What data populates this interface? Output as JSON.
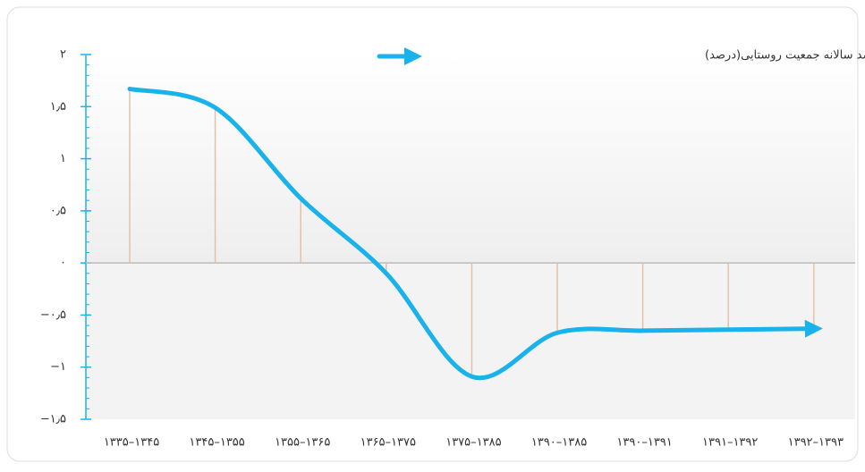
{
  "chart_data": {
    "type": "line",
    "categories": [
      "۱۳۳۵–۱۳۴۵",
      "۱۳۴۵–۱۳۵۵",
      "۱۳۵۵–۱۳۶۵",
      "۱۳۶۵–۱۳۷۵",
      "۱۳۷۵–۱۳۸۵",
      "۱۳۹۰–۱۳۸۵",
      "۱۳۹۰–۱۳۹۱",
      "۱۳۹۱–۱۳۹۲",
      "۱۳۹۲–۱۳۹۳"
    ],
    "series": [
      {
        "name": "متوسط رشد سالانه جمعیت روستایی(درصد)",
        "color": "#1ab2ea",
        "values": [
          1.67,
          1.49,
          0.62,
          -0.1,
          -1.09,
          -0.67,
          -0.65,
          -0.64,
          -0.63
        ]
      }
    ],
    "ylim": [
      -1.5,
      2
    ],
    "yticks": [
      {
        "value": 2,
        "label": "۲"
      },
      {
        "value": 1.5,
        "label": "۱٫۵"
      },
      {
        "value": 1,
        "label": "۱"
      },
      {
        "value": 0.5,
        "label": "۰٫۵"
      },
      {
        "value": 0,
        "label": "۰"
      },
      {
        "value": -0.5,
        "label": "−۰٫۵"
      },
      {
        "value": -1,
        "label": "−۱"
      },
      {
        "value": -1.5,
        "label": "−۱٫۵"
      }
    ],
    "drop_line_color": "#e8bfa5"
  }
}
